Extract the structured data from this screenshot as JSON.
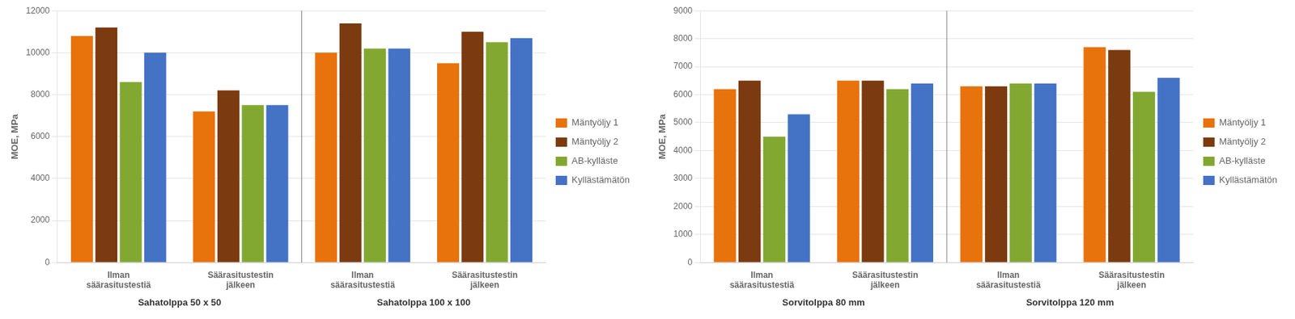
{
  "chart_data": [
    {
      "type": "bar",
      "y_label": "MOE, MPa",
      "categories": [
        "Ilman\nsäärasitustestiä",
        "Säärasitustestin\njälkeen",
        "Ilman\nsäärasitustestiä",
        "Säärasitustestin\njälkeen"
      ],
      "annotations": [
        "Sahatolppa 50 x 50",
        "Sahatolppa 100 x 100"
      ],
      "series": [
        {
          "name": "Mäntyöljy 1",
          "color": "#E8720C",
          "values": [
            10800,
            7200,
            10000,
            9500
          ]
        },
        {
          "name": "Mäntyöljy 2",
          "color": "#7B3A10",
          "values": [
            11200,
            8200,
            11400,
            11000
          ]
        },
        {
          "name": "AB-kylläste",
          "color": "#82A832",
          "values": [
            8600,
            7500,
            10200,
            10500
          ]
        },
        {
          "name": "Kyllästämätön",
          "color": "#4472C4",
          "values": [
            10000,
            7500,
            10200,
            10700
          ]
        }
      ],
      "ylim": [
        0,
        12000
      ],
      "yticks": [
        0,
        2000,
        4000,
        6000,
        8000,
        10000,
        12000
      ],
      "grid": true,
      "legend": "right"
    },
    {
      "type": "bar",
      "y_label": "MOE, MPa",
      "categories": [
        "Ilman\nsäärasitustestiä",
        "Säärasitustestin\njälkeen",
        "Ilman\nsäärasitustestiä",
        "Säärasitustestin\njälkeen"
      ],
      "annotations": [
        "Sorvitolppa 80 mm",
        "Sorvitolppa 120 mm"
      ],
      "series": [
        {
          "name": "Mäntyöljy 1",
          "color": "#E8720C",
          "values": [
            6200,
            6500,
            6300,
            7700
          ]
        },
        {
          "name": "Mäntyöljy 2",
          "color": "#7B3A10",
          "values": [
            6500,
            6500,
            6300,
            7600
          ]
        },
        {
          "name": "AB-kylläste",
          "color": "#82A832",
          "values": [
            4500,
            6200,
            6400,
            6100
          ]
        },
        {
          "name": "Kyllästämätön",
          "color": "#4472C4",
          "values": [
            5300,
            6400,
            6400,
            6600
          ]
        }
      ],
      "ylim": [
        0,
        9000
      ],
      "yticks": [
        0,
        1000,
        2000,
        3000,
        4000,
        5000,
        6000,
        7000,
        8000,
        9000
      ],
      "grid": true,
      "legend": "right"
    }
  ]
}
